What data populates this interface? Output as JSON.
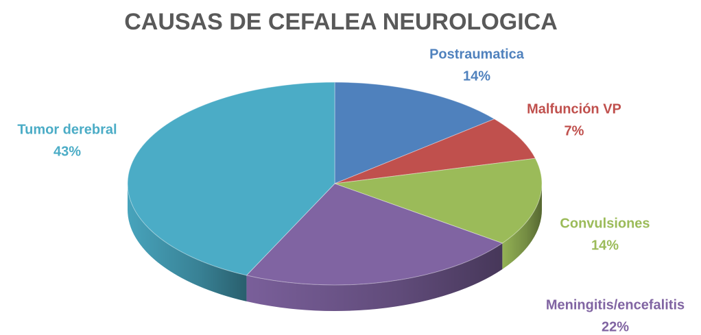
{
  "chart_data": {
    "type": "pie",
    "title": "CAUSAS DE CEFALEA NEUROLOGICA",
    "categories": [
      "Postraumatica",
      "Malfunción VP",
      "Convulsiones",
      "Meningitis/encefalitis",
      "Tumor derebral"
    ],
    "values": [
      14,
      7,
      14,
      22,
      43
    ],
    "value_labels": [
      "14%",
      "7%",
      "14%",
      "22%",
      "43%"
    ],
    "colors": [
      "#4f81bd",
      "#c0504d",
      "#9bbb59",
      "#8064a2",
      "#4bacc6"
    ]
  }
}
